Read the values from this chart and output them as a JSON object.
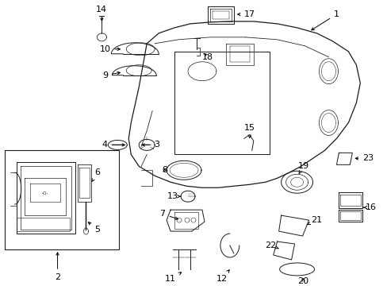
{
  "bg_color": "#ffffff",
  "fig_width": 4.89,
  "fig_height": 3.6,
  "dpi": 100,
  "label_fontsize": 8.0,
  "lw": 0.7
}
